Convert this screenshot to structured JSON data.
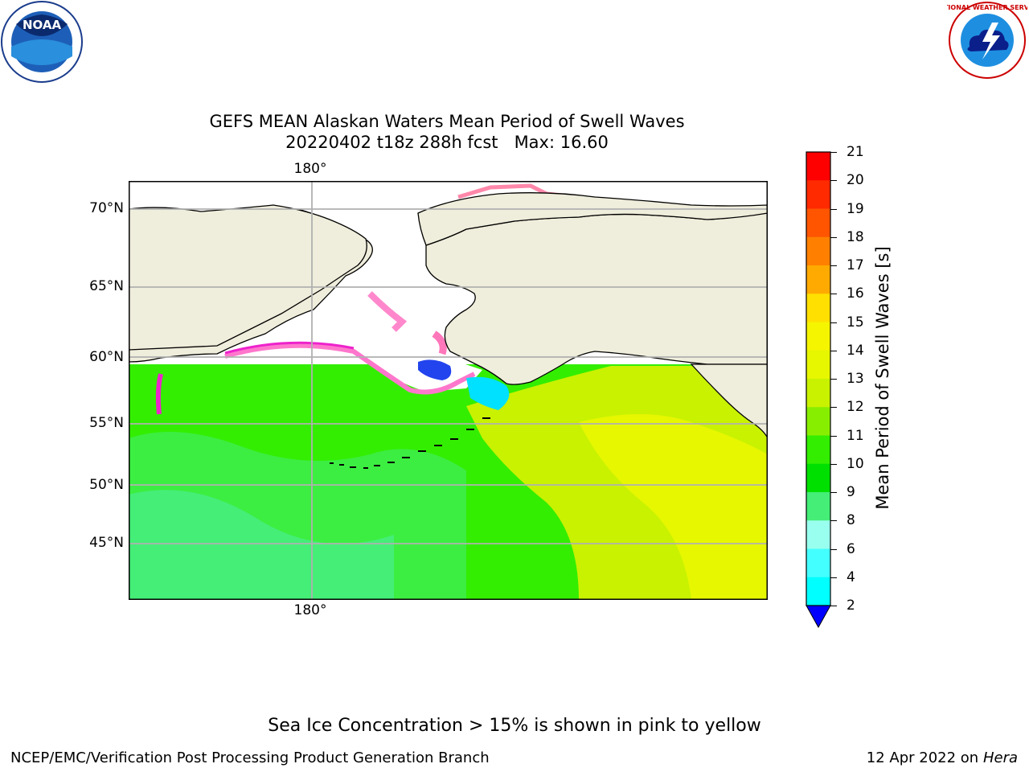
{
  "header": {
    "title_line1": "GEFS MEAN Alaskan Waters Mean Period of Swell Waves",
    "title_line2": "20220402 t18z 288h fcst   Max: 16.60"
  },
  "logos": {
    "noara_text": "NOAA",
    "nws_text": "NATIONAL WEATHER SERVICE"
  },
  "map": {
    "lat_labels": [
      "70°N",
      "65°N",
      "60°N",
      "55°N",
      "50°N",
      "45°N"
    ],
    "lon_label_top": "180°",
    "lon_label_bottom": "180°",
    "colors": {
      "land": "#efeddb",
      "ocean_green": "#44ee22",
      "yellow": "#e6f700",
      "grid": "#b0b0b0"
    }
  },
  "colorbar": {
    "label": "Mean Period of Swell Waves [s]",
    "ticks": [
      "21",
      "20",
      "19",
      "18",
      "17",
      "16",
      "15",
      "14",
      "13",
      "12",
      "11",
      "10",
      "9",
      "8",
      "6",
      "4",
      "2"
    ],
    "colors": [
      "#ff0000",
      "#ff2a00",
      "#ff5500",
      "#ff8000",
      "#ffaa00",
      "#ffe000",
      "#f5f500",
      "#e6f700",
      "#c8f200",
      "#88ee00",
      "#33ee00",
      "#00e000",
      "#44ee77",
      "#99ffee",
      "#44ffff",
      "#00ffff",
      "#00ccff",
      "#0077ff"
    ],
    "extend_color": "#0000ff"
  },
  "caption": "Sea Ice Concentration > 15% is shown in pink to yellow",
  "footer": {
    "left": "NCEP/EMC/Verification Post Processing Product Generation Branch",
    "right_date": "12 Apr 2022 on ",
    "right_machine": "Hera"
  }
}
